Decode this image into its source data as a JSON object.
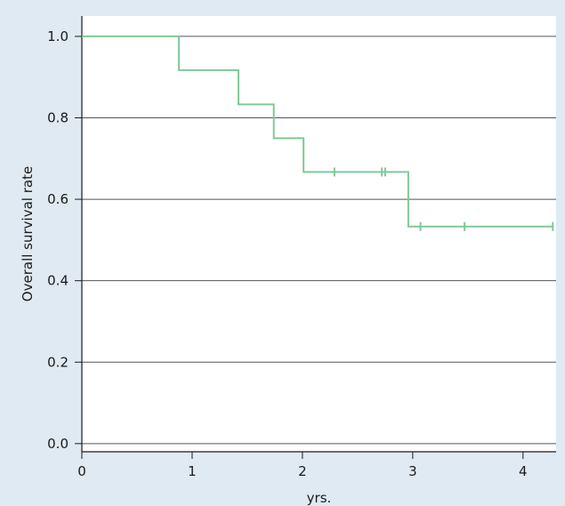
{
  "chart_data": {
    "type": "line",
    "title": "",
    "xlabel": "yrs.",
    "ylabel": "Overall survival rate",
    "xlim": [
      0,
      4.3
    ],
    "ylim": [
      -0.02,
      1.05
    ],
    "x_ticks": [
      0,
      1,
      2,
      3,
      4
    ],
    "x_tick_labels": [
      "0",
      "1",
      "2",
      "3",
      "4"
    ],
    "y_ticks": [
      0.0,
      0.2,
      0.4,
      0.6,
      0.8,
      1.0
    ],
    "y_tick_labels": [
      "0.0",
      "0.2",
      "0.4",
      "0.6",
      "0.8",
      "1.0"
    ],
    "grid": "horizontal",
    "series": [
      {
        "step_curve": [
          {
            "x": 0,
            "y": 1.0
          },
          {
            "x": 0.88,
            "y": 0.917
          },
          {
            "x": 1.42,
            "y": 0.833
          },
          {
            "x": 1.74,
            "y": 0.75
          },
          {
            "x": 2.01,
            "y": 0.667
          },
          {
            "x": 2.96,
            "y": 0.533
          }
        ],
        "end_x": 4.27,
        "censored": [
          {
            "x": 2.29,
            "y": 0.667
          },
          {
            "x": 2.72,
            "y": 0.667
          },
          {
            "x": 2.75,
            "y": 0.667
          },
          {
            "x": 3.07,
            "y": 0.533
          },
          {
            "x": 3.47,
            "y": 0.533
          },
          {
            "x": 4.27,
            "y": 0.533
          }
        ]
      }
    ],
    "colors": {
      "background": "#dfeaf3",
      "plot_background": "#ffffff",
      "grid": "#555555",
      "axis": "#1a1a1a",
      "curve": "#7fc997"
    }
  }
}
